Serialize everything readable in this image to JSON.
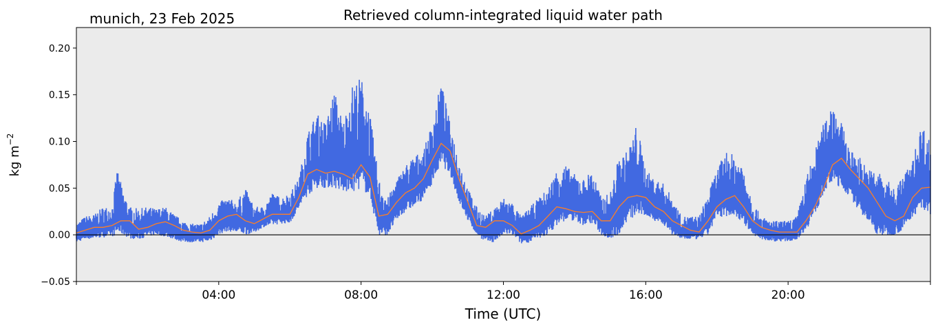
{
  "chart_data": {
    "type": "scatter",
    "title": "Retrieved column-integrated liquid water path",
    "subtitle": "munich, 23 Feb 2025",
    "xlabel": "Time (UTC)",
    "ylabel": "kg m",
    "ylabel_superscript": "−2",
    "xlim": [
      0,
      24
    ],
    "ylim": [
      -0.05,
      0.222
    ],
    "grid": false,
    "background": "#ebebeb",
    "zero_line": 0.0,
    "x_ticks": [
      {
        "value": 4,
        "label": "04:00"
      },
      {
        "value": 8,
        "label": "08:00"
      },
      {
        "value": 12,
        "label": "12:00"
      },
      {
        "value": 16,
        "label": "16:00"
      },
      {
        "value": 20,
        "label": "20:00"
      }
    ],
    "y_ticks": [
      {
        "value": -0.05,
        "label": "−0.05"
      },
      {
        "value": 0.0,
        "label": "0.00"
      },
      {
        "value": 0.05,
        "label": "0.05"
      },
      {
        "value": 0.1,
        "label": "0.10"
      },
      {
        "value": 0.15,
        "label": "0.15"
      },
      {
        "value": 0.2,
        "label": "0.20"
      }
    ],
    "series": [
      {
        "kind": "scatter-band",
        "color": "#4169e1",
        "x": [
          0.0,
          0.25,
          0.5,
          0.75,
          1.0,
          1.15,
          1.3,
          1.5,
          1.75,
          2.0,
          2.25,
          2.5,
          2.75,
          3.0,
          3.25,
          3.5,
          3.75,
          4.0,
          4.25,
          4.5,
          4.75,
          5.0,
          5.25,
          5.5,
          5.75,
          6.0,
          6.25,
          6.5,
          6.75,
          7.0,
          7.25,
          7.5,
          7.75,
          8.0,
          8.25,
          8.5,
          8.75,
          9.0,
          9.25,
          9.5,
          9.75,
          10.0,
          10.25,
          10.5,
          10.75,
          11.0,
          11.25,
          11.5,
          11.75,
          12.0,
          12.25,
          12.5,
          12.75,
          13.0,
          13.25,
          13.5,
          13.75,
          14.0,
          14.25,
          14.5,
          14.75,
          15.0,
          15.25,
          15.5,
          15.75,
          16.0,
          16.25,
          16.5,
          16.75,
          17.0,
          17.25,
          17.5,
          17.75,
          18.0,
          18.25,
          18.5,
          18.75,
          19.0,
          19.25,
          19.5,
          19.75,
          20.0,
          20.25,
          20.5,
          20.75,
          21.0,
          21.25,
          21.5,
          21.75,
          22.0,
          22.25,
          22.5,
          22.75,
          23.0,
          23.25,
          23.5,
          23.75,
          24.0
        ],
        "low": [
          -0.008,
          -0.005,
          -0.004,
          -0.003,
          -0.002,
          0.0,
          0.0,
          -0.004,
          -0.005,
          -0.002,
          0.0,
          -0.002,
          -0.005,
          -0.008,
          -0.008,
          -0.008,
          -0.007,
          0.0,
          0.004,
          0.002,
          0.0,
          0.002,
          0.008,
          0.01,
          0.012,
          0.012,
          0.028,
          0.042,
          0.05,
          0.05,
          0.05,
          0.045,
          0.045,
          0.05,
          0.04,
          -0.002,
          0.0,
          0.015,
          0.025,
          0.03,
          0.038,
          0.055,
          0.075,
          0.065,
          0.035,
          0.015,
          0.0,
          -0.008,
          -0.008,
          0.0,
          0.0,
          -0.01,
          -0.008,
          -0.005,
          0.0,
          0.01,
          0.015,
          0.015,
          0.01,
          0.012,
          0.0,
          -0.005,
          0.0,
          0.015,
          0.02,
          0.02,
          0.015,
          0.01,
          0.0,
          -0.005,
          -0.005,
          -0.005,
          0.0,
          0.018,
          0.02,
          0.02,
          0.012,
          0.0,
          -0.005,
          -0.007,
          -0.007,
          -0.007,
          -0.005,
          0.005,
          0.02,
          0.045,
          0.055,
          0.05,
          0.04,
          0.025,
          0.015,
          0.0,
          -0.002,
          0.0,
          0.005,
          0.02,
          0.025,
          0.02
        ],
        "high": [
          0.012,
          0.02,
          0.022,
          0.03,
          0.03,
          0.072,
          0.048,
          0.03,
          0.028,
          0.03,
          0.028,
          0.03,
          0.022,
          0.015,
          0.012,
          0.012,
          0.02,
          0.035,
          0.04,
          0.035,
          0.05,
          0.03,
          0.03,
          0.045,
          0.04,
          0.045,
          0.06,
          0.11,
          0.13,
          0.12,
          0.155,
          0.12,
          0.16,
          0.17,
          0.13,
          0.06,
          0.04,
          0.06,
          0.075,
          0.085,
          0.09,
          0.12,
          0.165,
          0.12,
          0.08,
          0.05,
          0.03,
          0.02,
          0.03,
          0.04,
          0.035,
          0.02,
          0.03,
          0.04,
          0.05,
          0.07,
          0.075,
          0.065,
          0.06,
          0.07,
          0.04,
          0.045,
          0.085,
          0.09,
          0.12,
          0.07,
          0.06,
          0.055,
          0.04,
          0.02,
          0.02,
          0.02,
          0.045,
          0.07,
          0.09,
          0.085,
          0.075,
          0.035,
          0.02,
          0.015,
          0.015,
          0.015,
          0.02,
          0.06,
          0.09,
          0.12,
          0.145,
          0.12,
          0.09,
          0.085,
          0.07,
          0.07,
          0.06,
          0.05,
          0.065,
          0.08,
          0.12,
          0.1
        ]
      },
      {
        "kind": "line",
        "color": "#ff7f24",
        "x": [
          0.0,
          0.25,
          0.5,
          0.75,
          1.0,
          1.25,
          1.5,
          1.75,
          2.0,
          2.25,
          2.5,
          2.75,
          3.0,
          3.25,
          3.5,
          3.75,
          4.0,
          4.25,
          4.5,
          4.75,
          5.0,
          5.25,
          5.5,
          5.75,
          6.0,
          6.25,
          6.5,
          6.75,
          7.0,
          7.25,
          7.5,
          7.75,
          8.0,
          8.25,
          8.5,
          8.75,
          9.0,
          9.25,
          9.5,
          9.75,
          10.0,
          10.25,
          10.5,
          10.75,
          11.0,
          11.25,
          11.5,
          11.75,
          12.0,
          12.25,
          12.5,
          12.75,
          13.0,
          13.25,
          13.5,
          13.75,
          14.0,
          14.25,
          14.5,
          14.75,
          15.0,
          15.25,
          15.5,
          15.75,
          16.0,
          16.25,
          16.5,
          16.75,
          17.0,
          17.25,
          17.5,
          17.75,
          18.0,
          18.25,
          18.5,
          18.75,
          19.0,
          19.25,
          19.5,
          19.75,
          20.0,
          20.25,
          20.5,
          20.75,
          21.0,
          21.25,
          21.5,
          21.75,
          22.0,
          22.25,
          22.5,
          22.75,
          23.0,
          23.25,
          23.5,
          23.75,
          24.0
        ],
        "y": [
          0.002,
          0.005,
          0.008,
          0.008,
          0.01,
          0.015,
          0.015,
          0.006,
          0.008,
          0.012,
          0.014,
          0.01,
          0.005,
          0.003,
          0.002,
          0.005,
          0.015,
          0.02,
          0.022,
          0.015,
          0.012,
          0.017,
          0.022,
          0.022,
          0.022,
          0.04,
          0.065,
          0.07,
          0.066,
          0.068,
          0.065,
          0.06,
          0.075,
          0.062,
          0.02,
          0.022,
          0.035,
          0.045,
          0.05,
          0.06,
          0.08,
          0.098,
          0.09,
          0.06,
          0.035,
          0.01,
          0.008,
          0.015,
          0.015,
          0.01,
          0.001,
          0.005,
          0.01,
          0.02,
          0.03,
          0.028,
          0.025,
          0.024,
          0.025,
          0.015,
          0.015,
          0.03,
          0.04,
          0.042,
          0.04,
          0.03,
          0.025,
          0.015,
          0.01,
          0.005,
          0.003,
          0.015,
          0.03,
          0.038,
          0.042,
          0.03,
          0.015,
          0.008,
          0.005,
          0.003,
          0.003,
          0.003,
          0.015,
          0.03,
          0.05,
          0.075,
          0.082,
          0.07,
          0.06,
          0.05,
          0.035,
          0.02,
          0.015,
          0.02,
          0.04,
          0.05,
          0.051
        ]
      }
    ]
  }
}
